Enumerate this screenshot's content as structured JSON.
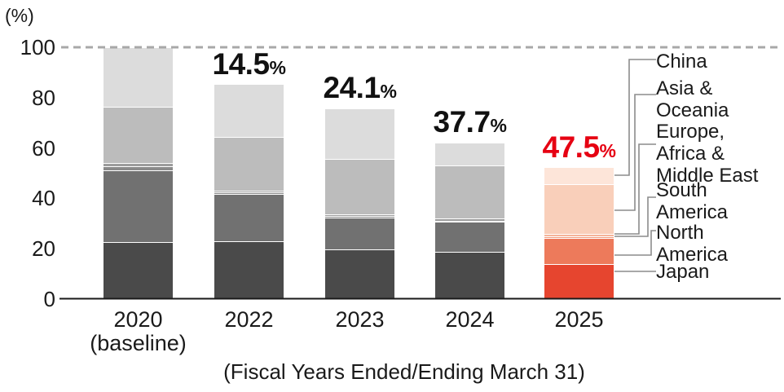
{
  "unit_label": "(%)",
  "caption": "(Fiscal Years Ended/Ending March 31)",
  "accent_red": "#e60012",
  "chart_data": {
    "type": "bar",
    "variant": "stacked",
    "title": "",
    "unit": "%",
    "ylim": [
      0,
      100
    ],
    "yticks": [
      0,
      20,
      40,
      60,
      80,
      100
    ],
    "baseline_dashed_line_at": 100,
    "legend_position": "right",
    "categories": [
      {
        "label": "2020",
        "sublabel": "(baseline)"
      },
      {
        "label": "2022",
        "sublabel": ""
      },
      {
        "label": "2023",
        "sublabel": ""
      },
      {
        "label": "2024",
        "sublabel": ""
      },
      {
        "label": "2025",
        "sublabel": ""
      }
    ],
    "totals": [
      100,
      85.5,
      75.9,
      62.3,
      52.5
    ],
    "reduction_labels": [
      "",
      "14.5",
      "24.1",
      "37.7",
      "47.5"
    ],
    "series": [
      {
        "name": "Japan",
        "values": [
          22.8,
          22.9,
          19.8,
          18.8,
          13.9
        ]
      },
      {
        "name": "North America",
        "values": [
          28.2,
          19.0,
          12.6,
          11.8,
          10.3
        ]
      },
      {
        "name": "South America",
        "values": [
          1.8,
          0.5,
          0.5,
          0.5,
          0.7
        ]
      },
      {
        "name": "Europe, Africa & Middle East",
        "values": [
          1.2,
          0.8,
          0.9,
          0.8,
          0.9
        ]
      },
      {
        "name": "Asia & Oceania",
        "values": [
          22.3,
          21.2,
          22.0,
          21.2,
          19.9
        ]
      },
      {
        "name": "China",
        "values": [
          23.7,
          21.1,
          20.1,
          9.2,
          6.8
        ]
      }
    ],
    "colors": {
      "gray_palette": [
        "#4a4a4a",
        "#717171",
        "#8a8a8a",
        "#9c9c9c",
        "#bcbcbc",
        "#dcdcdc"
      ],
      "red_palette_2025": [
        "#e6452f",
        "#ed7a5b",
        "#f2997d",
        "#f5b49a",
        "#f9cfba",
        "#fde5d9"
      ],
      "dashed_line": "#a8a8a8",
      "axis_line": "#1a1a1a",
      "connector_line": "#8c8c8c",
      "highlight_text": "#e60012"
    },
    "legend": [
      {
        "lines": [
          "China"
        ]
      },
      {
        "lines": [
          "Asia &",
          "Oceania"
        ]
      },
      {
        "lines": [
          "Europe,",
          "Africa &",
          "Middle East"
        ]
      },
      {
        "lines": [
          "South",
          "America"
        ]
      },
      {
        "lines": [
          "North",
          "America"
        ]
      },
      {
        "lines": [
          "Japan"
        ]
      }
    ]
  }
}
